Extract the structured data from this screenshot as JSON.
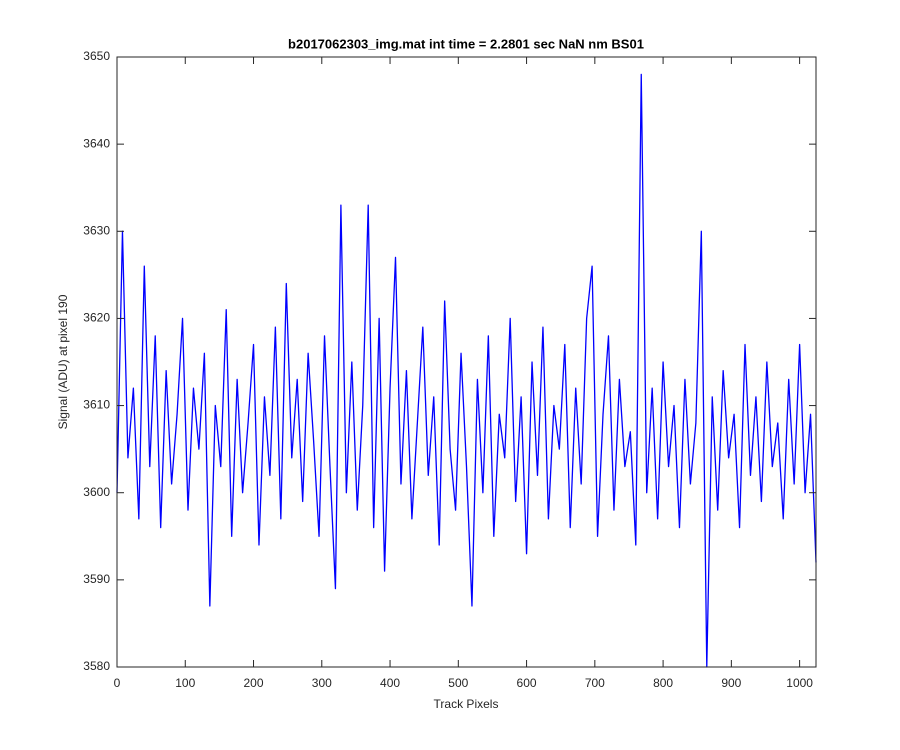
{
  "chart_data": {
    "type": "line",
    "title": "b2017062303_img.mat int time = 2.2801 sec  NaN nm BS01",
    "xlabel": "Track Pixels",
    "ylabel": "Signal (ADU) at pixel 190",
    "x": [
      0,
      8,
      16,
      24,
      32,
      40,
      48,
      56,
      64,
      72,
      80,
      88,
      96,
      104,
      112,
      120,
      128,
      136,
      144,
      152,
      160,
      168,
      176,
      184,
      192,
      200,
      208,
      216,
      224,
      232,
      240,
      248,
      256,
      264,
      272,
      280,
      288,
      296,
      304,
      312,
      320,
      328,
      336,
      344,
      352,
      360,
      368,
      376,
      384,
      392,
      400,
      408,
      416,
      424,
      432,
      440,
      448,
      456,
      464,
      472,
      480,
      488,
      496,
      504,
      512,
      520,
      528,
      536,
      544,
      552,
      560,
      568,
      576,
      584,
      592,
      600,
      608,
      616,
      624,
      632,
      640,
      648,
      656,
      664,
      672,
      680,
      688,
      696,
      704,
      712,
      720,
      728,
      736,
      744,
      752,
      760,
      768,
      776,
      784,
      792,
      800,
      808,
      816,
      824,
      832,
      840,
      848,
      856,
      864,
      872,
      880,
      888,
      896,
      904,
      912,
      920,
      928,
      936,
      944,
      952,
      960,
      968,
      976,
      984,
      992,
      1000,
      1008,
      1016,
      1024
    ],
    "series": [
      {
        "color": "#0000ff",
        "values": [
          3600,
          3630,
          3604,
          3612,
          3597,
          3626,
          3603,
          3618,
          3596,
          3614,
          3601,
          3609,
          3620,
          3598,
          3612,
          3605,
          3616,
          3587,
          3610,
          3603,
          3621,
          3595,
          3613,
          3600,
          3608,
          3617,
          3594,
          3611,
          3602,
          3619,
          3597,
          3624,
          3604,
          3613,
          3599,
          3616,
          3606,
          3595,
          3618,
          3603,
          3589,
          3633,
          3600,
          3615,
          3598,
          3610,
          3633,
          3596,
          3620,
          3591,
          3612,
          3627,
          3601,
          3614,
          3597,
          3608,
          3619,
          3602,
          3611,
          3594,
          3622,
          3605,
          3598,
          3616,
          3603,
          3587,
          3613,
          3600,
          3618,
          3595,
          3609,
          3604,
          3620,
          3599,
          3611,
          3593,
          3615,
          3602,
          3619,
          3597,
          3610,
          3605,
          3617,
          3596,
          3612,
          3601,
          3620,
          3626,
          3595,
          3609,
          3618,
          3598,
          3613,
          3603,
          3607,
          3594,
          3648,
          3600,
          3612,
          3597,
          3615,
          3603,
          3610,
          3596,
          3613,
          3601,
          3608,
          3630,
          3580,
          3611,
          3598,
          3614,
          3604,
          3609,
          3596,
          3617,
          3602,
          3611,
          3599,
          3615,
          3603,
          3608,
          3597,
          3613,
          3601,
          3617,
          3600,
          3609,
          3592
        ]
      }
    ],
    "xlim": [
      0,
      1024
    ],
    "ylim": [
      3580,
      3650
    ],
    "xticks": [
      0,
      100,
      200,
      300,
      400,
      500,
      600,
      700,
      800,
      900,
      1000
    ],
    "yticks": [
      3580,
      3590,
      3600,
      3610,
      3620,
      3630,
      3640,
      3650
    ]
  }
}
